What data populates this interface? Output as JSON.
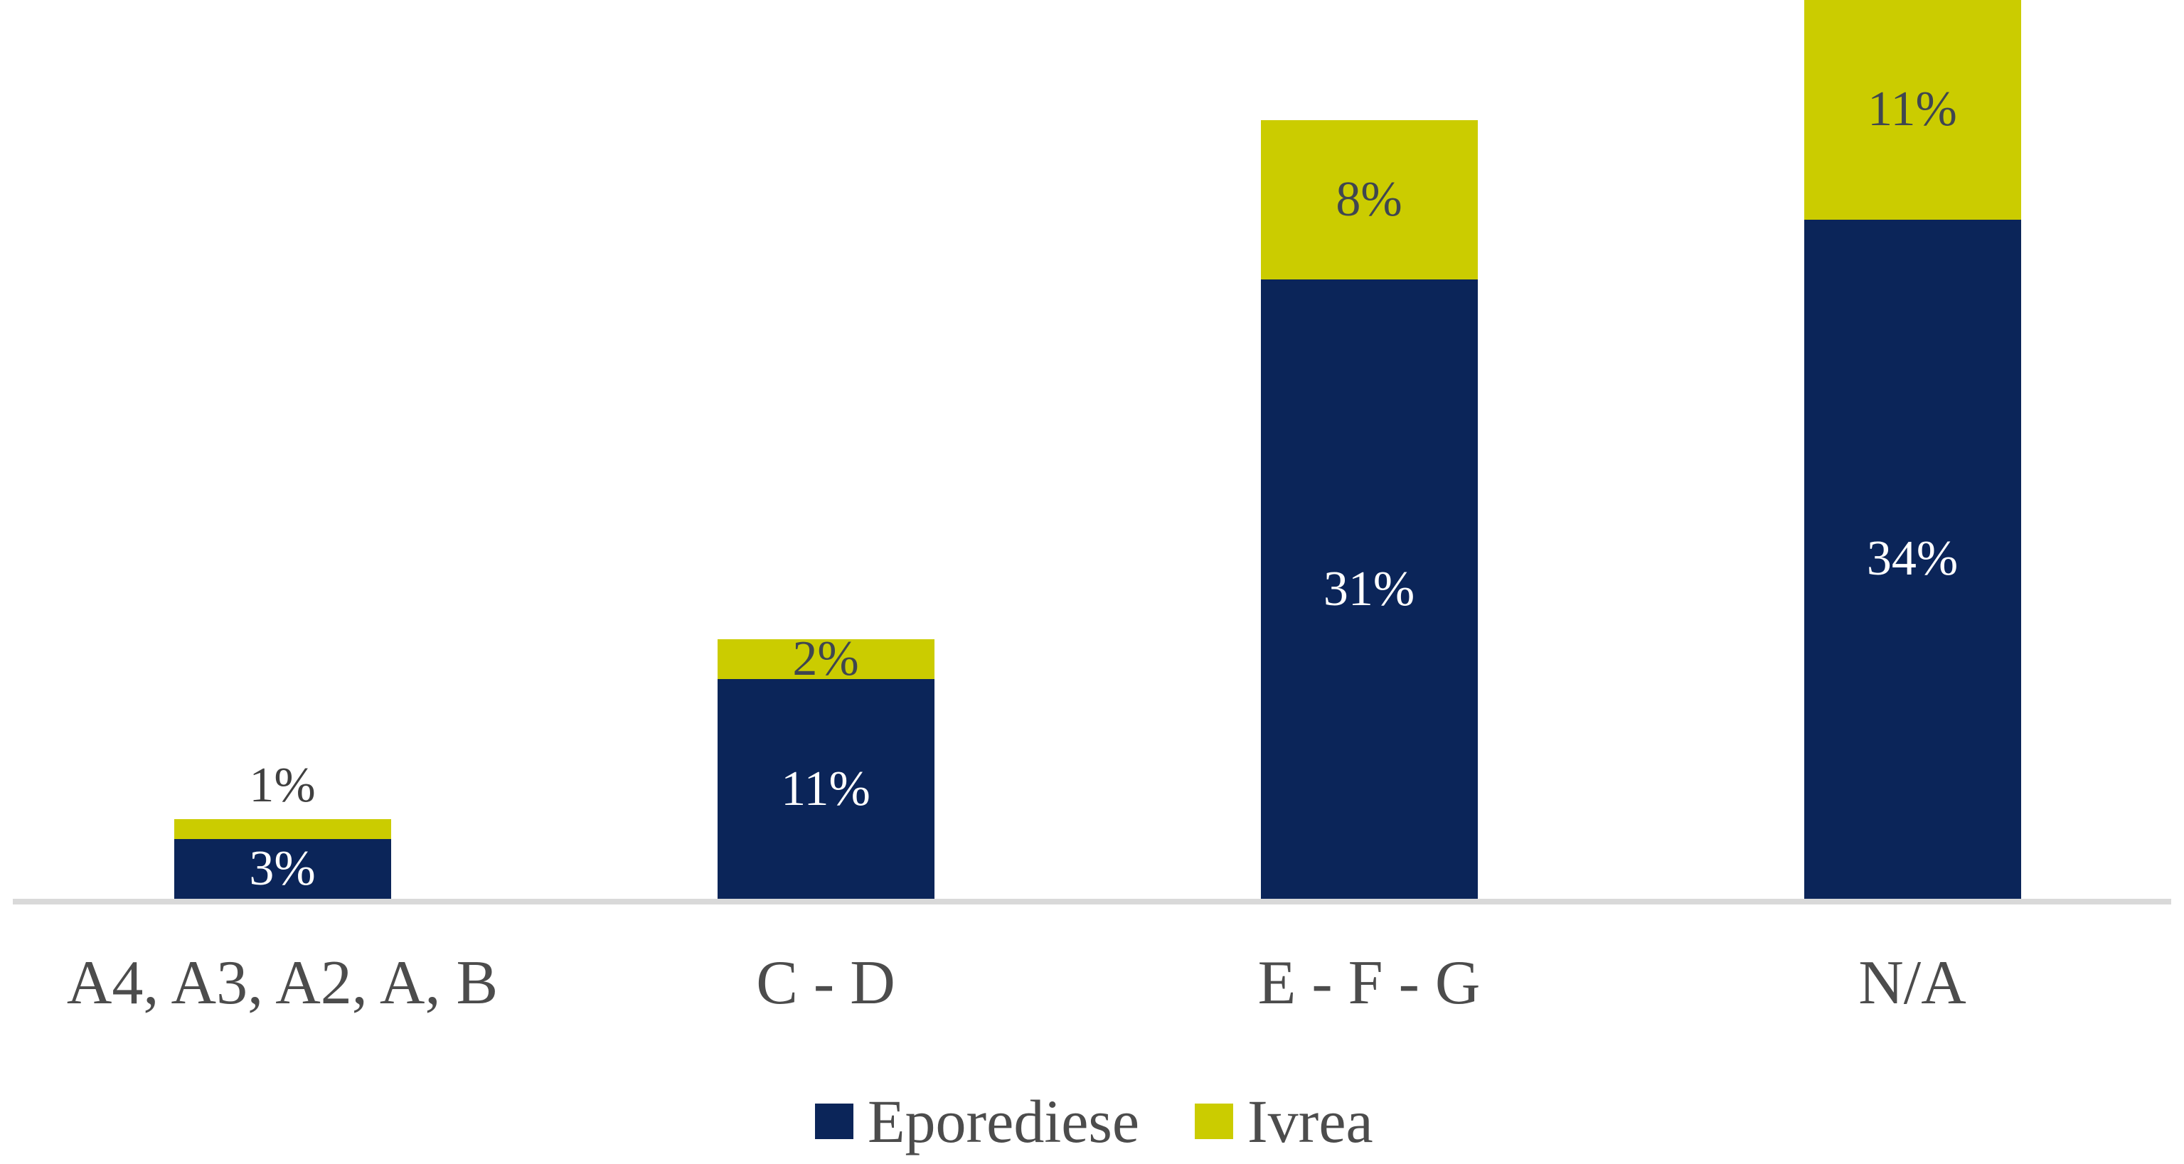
{
  "chart_data": {
    "type": "bar",
    "stacked": true,
    "title": "",
    "xlabel": "",
    "ylabel": "",
    "grid": false,
    "legend_position": "bottom",
    "ylim": [
      0,
      45
    ],
    "categories": [
      "A4, A3, A2, A, B",
      "C - D",
      "E - F - G",
      "N/A"
    ],
    "series": [
      {
        "name": "Eporediese",
        "color": "#0b2559",
        "values": [
          3,
          11,
          31,
          34
        ],
        "labels": [
          "3%",
          "11%",
          "31%",
          "34%"
        ]
      },
      {
        "name": "Ivrea",
        "color": "#cbcc00",
        "values": [
          1,
          2,
          8,
          11
        ],
        "labels": [
          "1%",
          "2%",
          "8%",
          "11%"
        ]
      }
    ]
  },
  "legend": {
    "items": [
      {
        "label": "Eporediese",
        "color": "#0b2559"
      },
      {
        "label": "Ivrea",
        "color": "#cbcc00"
      }
    ]
  },
  "colors": {
    "axis_line": "#d9d9d9",
    "label_on_dark": "#ffffff",
    "label_on_yellow": "#3f4650",
    "label_outside": "#404040",
    "category_text": "#4c4c4c"
  }
}
